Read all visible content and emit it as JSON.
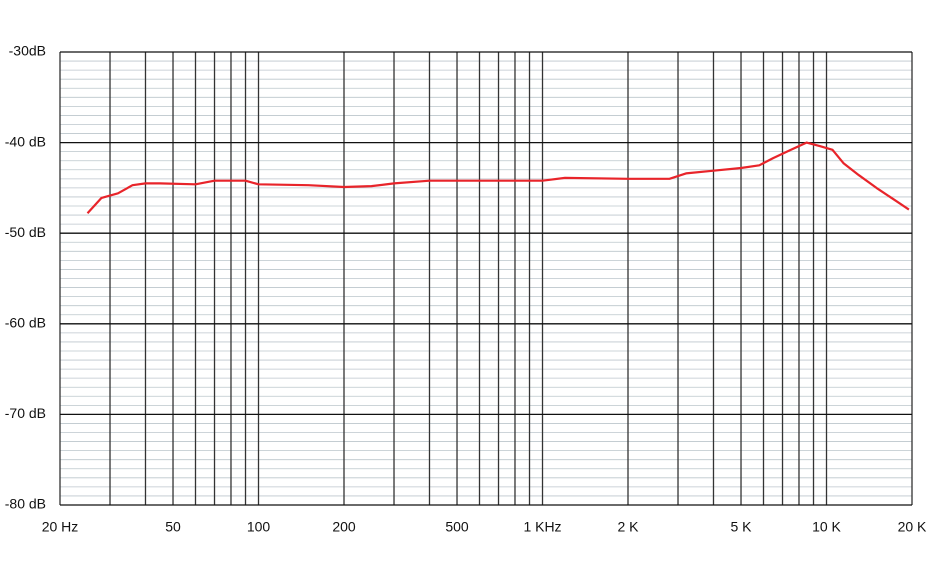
{
  "chart_data": {
    "type": "line",
    "log_x": true,
    "grid": true,
    "x": [
      25,
      28,
      32,
      36,
      40,
      45,
      60,
      70,
      90,
      100,
      150,
      200,
      250,
      300,
      400,
      1000,
      1200,
      2000,
      2800,
      3200,
      4000,
      5000,
      5800,
      6500,
      7500,
      8500,
      9500,
      10500,
      11500,
      13000,
      15000,
      17500,
      19500
    ],
    "series": [
      {
        "color": "#e8242a",
        "values": [
          -47.8,
          -46.1,
          -45.6,
          -44.7,
          -44.5,
          -44.5,
          -44.6,
          -44.2,
          -44.2,
          -44.6,
          -44.7,
          -44.9,
          -44.8,
          -44.5,
          -44.2,
          -44.2,
          -43.9,
          -44.0,
          -44.0,
          -43.4,
          -43.1,
          -42.8,
          -42.5,
          -41.7,
          -40.8,
          -40.0,
          -40.4,
          -40.8,
          -42.3,
          -43.6,
          -45.0,
          -46.4,
          -47.4
        ]
      }
    ],
    "xlim": [
      20,
      20000
    ],
    "xticks": [
      {
        "value": 20,
        "label": "20 Hz"
      },
      50,
      100,
      200,
      500,
      {
        "value": 1000,
        "label": "1 KHz"
      },
      {
        "value": 2000,
        "label": "2 K"
      },
      {
        "value": 5000,
        "label": "5 K"
      },
      {
        "value": 10000,
        "label": "10 K"
      },
      {
        "value": 20000,
        "label": "20 K"
      }
    ],
    "xgrid": [
      20,
      30,
      40,
      50,
      60,
      70,
      80,
      90,
      100,
      200,
      300,
      400,
      500,
      600,
      700,
      800,
      900,
      1000,
      2000,
      3000,
      4000,
      5000,
      6000,
      7000,
      8000,
      9000,
      10000,
      20000
    ],
    "ylim": [
      -80,
      -30
    ],
    "yticks": [
      {
        "value": -80,
        "label": "-80 dB"
      },
      {
        "value": -70,
        "label": "-70 dB"
      },
      {
        "value": -60,
        "label": "-60 dB"
      },
      {
        "value": -50,
        "label": "-50 dB"
      },
      {
        "value": -40,
        "label": "-40 dB"
      },
      {
        "value": -30,
        "label": "-30dB"
      }
    ],
    "yminor_step": 1
  }
}
